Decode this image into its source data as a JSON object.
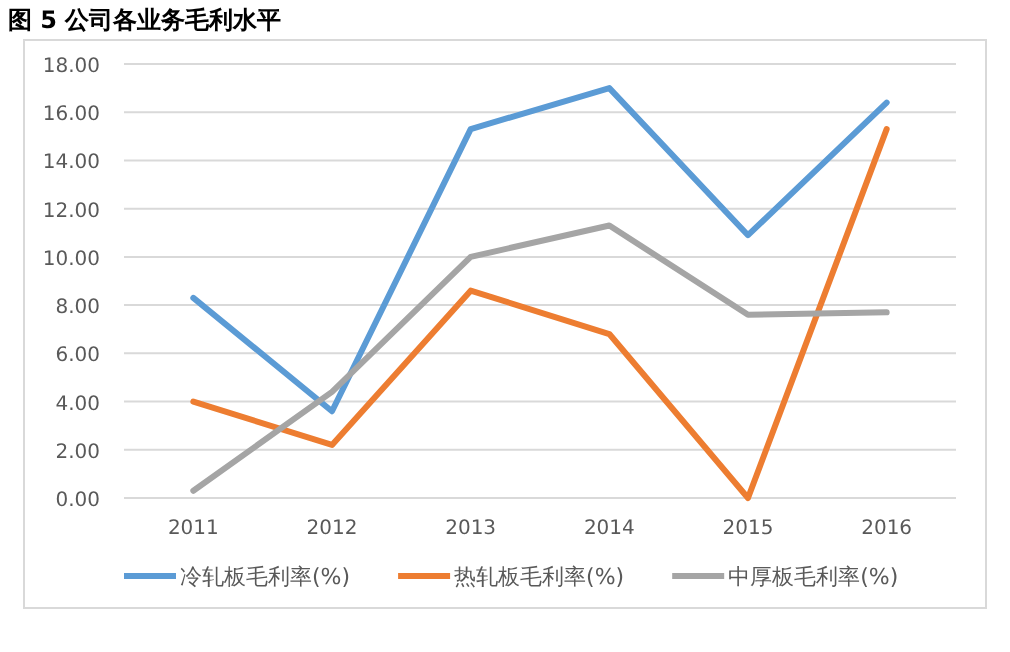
{
  "chart_data": {
    "type": "line",
    "title": "图 5 公司各业务毛利水平",
    "categories": [
      "2011",
      "2012",
      "2013",
      "2014",
      "2015",
      "2016"
    ],
    "series": [
      {
        "name": "冷轧板毛利率(%)",
        "color": "#5b9bd5",
        "values": [
          8.3,
          3.6,
          15.3,
          17.0,
          10.9,
          16.4
        ]
      },
      {
        "name": "热轧板毛利率(%)",
        "color": "#ed7d31",
        "values": [
          4.0,
          2.2,
          8.6,
          6.8,
          0.0,
          15.3
        ]
      },
      {
        "name": "中厚板毛利率(%)",
        "color": "#a5a5a5",
        "values": [
          0.3,
          4.4,
          10.0,
          11.3,
          7.6,
          7.7
        ]
      }
    ],
    "ylim": [
      0,
      18
    ],
    "yticks": [
      {
        "value": 0,
        "label": "0.00"
      },
      {
        "value": 2,
        "label": "2.00"
      },
      {
        "value": 4,
        "label": "4.00"
      },
      {
        "value": 6,
        "label": "6.00"
      },
      {
        "value": 8,
        "label": "8.00"
      },
      {
        "value": 10,
        "label": "10.00"
      },
      {
        "value": 12,
        "label": "12.00"
      },
      {
        "value": 14,
        "label": "14.00"
      },
      {
        "value": 16,
        "label": "16.00"
      },
      {
        "value": 18,
        "label": "18.00"
      }
    ],
    "grid": "y",
    "legend": "bottom",
    "line_style": "solid"
  }
}
